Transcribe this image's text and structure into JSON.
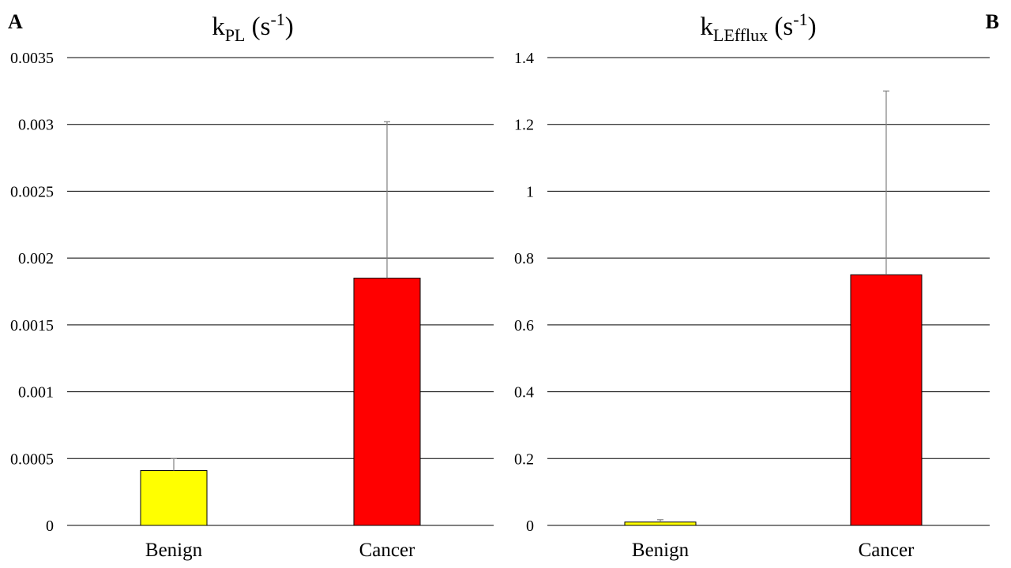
{
  "chart_data": [
    {
      "type": "bar",
      "panel_label": "A",
      "title": {
        "main": "k",
        "sub": "PL",
        "rest": " (s",
        "sup": "-1",
        "end": ")"
      },
      "categories": [
        "Benign",
        "Cancer"
      ],
      "values": [
        0.00041,
        0.00185
      ],
      "error_upper": [
        0.0005,
        0.00302
      ],
      "colors": [
        "#ffff00",
        "#ff0000"
      ],
      "ylim": [
        0,
        0.0035
      ],
      "yticks": [
        0,
        0.0005,
        0.001,
        0.0015,
        0.002,
        0.0025,
        0.003,
        0.0035
      ],
      "ytick_labels": [
        "0",
        "0.0005",
        "0.001",
        "0.0015",
        "0.002",
        "0.0025",
        "0.003",
        "0.0035"
      ],
      "grid": true,
      "xlabel": "",
      "ylabel": ""
    },
    {
      "type": "bar",
      "panel_label": "B",
      "title": {
        "main": "k",
        "sub": "LEfflux",
        "rest": " (s",
        "sup": "-1",
        "end": ")"
      },
      "categories": [
        "Benign",
        "Cancer"
      ],
      "values": [
        0.01,
        0.75
      ],
      "error_upper": [
        0.017,
        1.3
      ],
      "colors": [
        "#ffff00",
        "#ff0000"
      ],
      "ylim": [
        0,
        1.4
      ],
      "yticks": [
        0,
        0.2,
        0.4,
        0.6,
        0.8,
        1.0,
        1.2,
        1.4
      ],
      "ytick_labels": [
        "0",
        "0.2",
        "0.4",
        "0.6",
        "0.8",
        "1",
        "1.2",
        "1.4"
      ],
      "grid": true,
      "xlabel": "",
      "ylabel": ""
    }
  ]
}
